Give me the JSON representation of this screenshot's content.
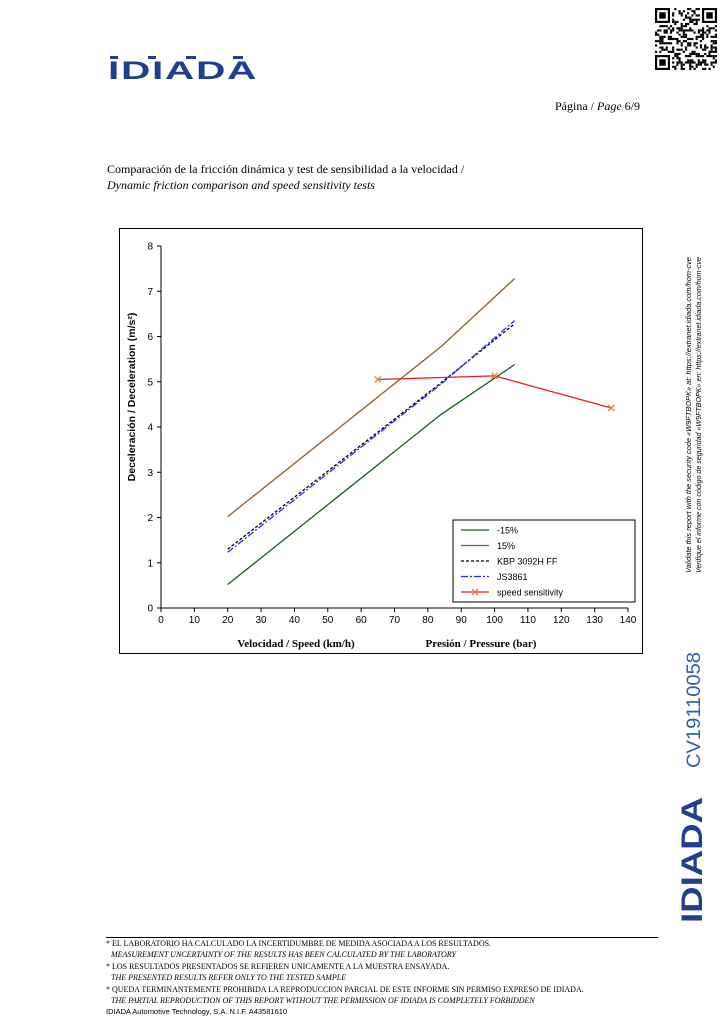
{
  "header": {
    "logo_text": "IDIADA",
    "page_label_es": "Página /",
    "page_label_en": "Page",
    "page_number": "6/9"
  },
  "section": {
    "title_es": "Comparación de la fricción dinámica y test de sensibilidad a la velocidad /",
    "title_en": "Dynamic friction comparison and speed sensitivity tests"
  },
  "chart_data": {
    "type": "line",
    "ylabel": "Deceleración / Deceleration (m/s²)",
    "xlabel_left": "Velocidad / Speed (km/h)",
    "xlabel_right": "Presión / Pressure (bar)",
    "xlim": [
      0,
      140
    ],
    "ylim": [
      0,
      8
    ],
    "x_ticks": [
      0,
      10,
      20,
      30,
      40,
      50,
      60,
      70,
      80,
      90,
      100,
      110,
      120,
      130,
      140
    ],
    "y_ticks": [
      0,
      1,
      2,
      3,
      4,
      5,
      6,
      7,
      8
    ],
    "grid": false,
    "legend_position": "bottom-right",
    "series": [
      {
        "name": "-15%",
        "color": "#1a5e1a",
        "style": "solid",
        "marker": "none",
        "x": [
          20,
          84,
          106
        ],
        "y": [
          0.52,
          4.28,
          5.38
        ]
      },
      {
        "name": "15%",
        "color": "#8b5a2b",
        "style": "solid",
        "marker": "none",
        "x": [
          20,
          84,
          106
        ],
        "y": [
          2.02,
          5.78,
          7.28
        ]
      },
      {
        "name": "KBP 3092H FF",
        "color": "#000000",
        "style": "dashed",
        "marker": "none",
        "x": [
          20,
          84,
          106
        ],
        "y": [
          1.3,
          4.98,
          6.28
        ]
      },
      {
        "name": "JS3861",
        "color": "#2a2aff",
        "style": "dashdot",
        "marker": "none",
        "x": [
          20,
          84,
          106
        ],
        "y": [
          1.23,
          4.95,
          6.35
        ]
      },
      {
        "name": "speed sensitivity",
        "color": "#e02020",
        "style": "solid",
        "marker": "x",
        "x": [
          65,
          100,
          135
        ],
        "y": [
          5.05,
          5.13,
          4.42
        ]
      }
    ]
  },
  "side": {
    "validate_en": "Validate this report with the security code «W9FTBOPK» at:  https://extranet.idiada.com/hom-cve",
    "validate_es": "Verifique el informe con código de seguridad «W9FTBOPK» en:  https://extranet.idiada.com/hom-cve",
    "report_code": "CV19110058",
    "logo_text": "IDIADA"
  },
  "footer": {
    "line1": "* EL LABORATORIO HA CALCULADO LA INCERTIDUMBRE DE MEDIDA ASOCIADA A LOS RESULTADOS.",
    "line1_en": "MEASUREMENT UNCERTAINTY OF THE RESULTS HAS BEEN CALCULATED BY THE LABORATORY",
    "line2": "* LOS RESULTADOS PRESENTADOS SE REFIEREN UNICAMENTE A LA MUESTRA ENSAYADA.",
    "line2_en": "THE PRESENTED RESULTS REFER ONLY TO THE TESTED SAMPLE",
    "line3": "* QUEDA TERMINANTEMENTE PROHIBIDA LA REPRODUCCION PARCIAL DE ESTE INFORME SIN PERMISO EXPRESO DE  IDIADA.",
    "line3_en": "THE PARTIAL REPRODUCTION OF THIS REPORT WITHOUT THE PERMISSION OF IDIADA IS COMPLETELY FORBIDDEN",
    "company": "IDIADA Automotive Technology, S.A.        N.I.F. A43581610"
  }
}
